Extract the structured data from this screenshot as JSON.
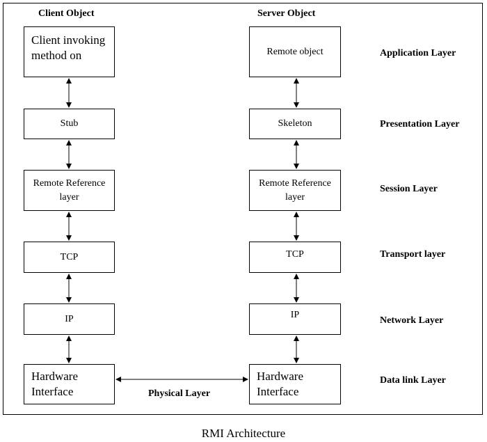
{
  "client_column": {
    "title": "Client Object",
    "boxes": [
      "Client invoking method on",
      "Stub",
      "Remote Reference layer",
      "TCP",
      "IP",
      "Hardware Interface"
    ]
  },
  "server_column": {
    "title": "Server Object",
    "boxes": [
      "Remote object",
      "Skeleton",
      "Remote Reference layer",
      "TCP",
      "IP",
      "Hardware Interface"
    ]
  },
  "layers": [
    "Application Layer",
    "Presentation Layer",
    "Session Layer",
    "Transport layer",
    "Network Layer",
    "Data link Layer"
  ],
  "physical_link_label": "Physical Layer",
  "caption": "RMI Architecture"
}
